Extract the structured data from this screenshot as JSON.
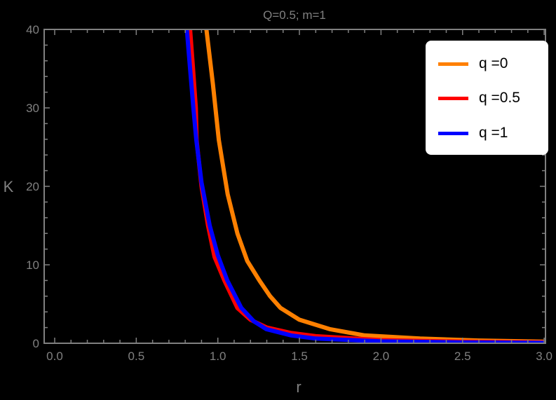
{
  "chart_data": {
    "type": "line",
    "title": "Q=0.5; m=1",
    "xlabel": "r",
    "ylabel": "K",
    "xlim": [
      0,
      3
    ],
    "ylim": [
      0,
      40
    ],
    "x_ticks": [
      "0.0",
      "0.5",
      "1.0",
      "1.5",
      "2.0",
      "2.5",
      "3.0"
    ],
    "y_ticks": [
      "0",
      "10",
      "20",
      "30",
      "40"
    ],
    "grid": false,
    "legend_position": "upper right",
    "series": [
      {
        "name": "q =0",
        "color": "#FF8000",
        "points": [
          [
            0.93,
            40
          ],
          [
            0.97,
            33
          ],
          [
            1.006,
            25.9
          ],
          [
            1.06,
            19
          ],
          [
            1.12,
            14
          ],
          [
            1.18,
            10.5
          ],
          [
            1.255,
            8.0
          ],
          [
            1.32,
            6.0
          ],
          [
            1.384,
            4.5
          ],
          [
            1.5,
            3.0
          ],
          [
            1.685,
            1.8
          ],
          [
            1.9,
            1.0
          ],
          [
            2.24,
            0.6
          ],
          [
            2.6,
            0.35
          ],
          [
            3.0,
            0.2
          ]
        ]
      },
      {
        "name": "q =0.5",
        "color": "#FF0000",
        "points": [
          [
            0.83,
            40
          ],
          [
            0.848,
            35
          ],
          [
            0.865,
            30
          ],
          [
            0.87,
            25.9
          ],
          [
            0.9,
            20
          ],
          [
            0.94,
            15
          ],
          [
            0.98,
            11
          ],
          [
            1.04,
            8.0
          ],
          [
            1.12,
            4.5
          ],
          [
            1.2,
            3.0
          ],
          [
            1.3,
            2.0
          ],
          [
            1.45,
            1.3
          ],
          [
            1.6,
            0.9
          ],
          [
            2.0,
            0.4
          ],
          [
            2.5,
            0.2
          ],
          [
            3.0,
            0.12
          ]
        ]
      },
      {
        "name": "q =1",
        "color": "#0000FF",
        "points": [
          [
            0.81,
            40
          ],
          [
            0.83,
            35
          ],
          [
            0.85,
            30
          ],
          [
            0.868,
            25.9
          ],
          [
            0.9,
            20.5
          ],
          [
            0.95,
            15
          ],
          [
            1.0,
            11.2
          ],
          [
            1.058,
            8.0
          ],
          [
            1.144,
            4.5
          ],
          [
            1.22,
            2.8
          ],
          [
            1.297,
            1.8
          ],
          [
            1.45,
            1.0
          ],
          [
            1.6,
            0.6
          ],
          [
            2.0,
            0.25
          ],
          [
            2.5,
            0.1
          ],
          [
            3.0,
            0.05
          ]
        ]
      }
    ]
  }
}
